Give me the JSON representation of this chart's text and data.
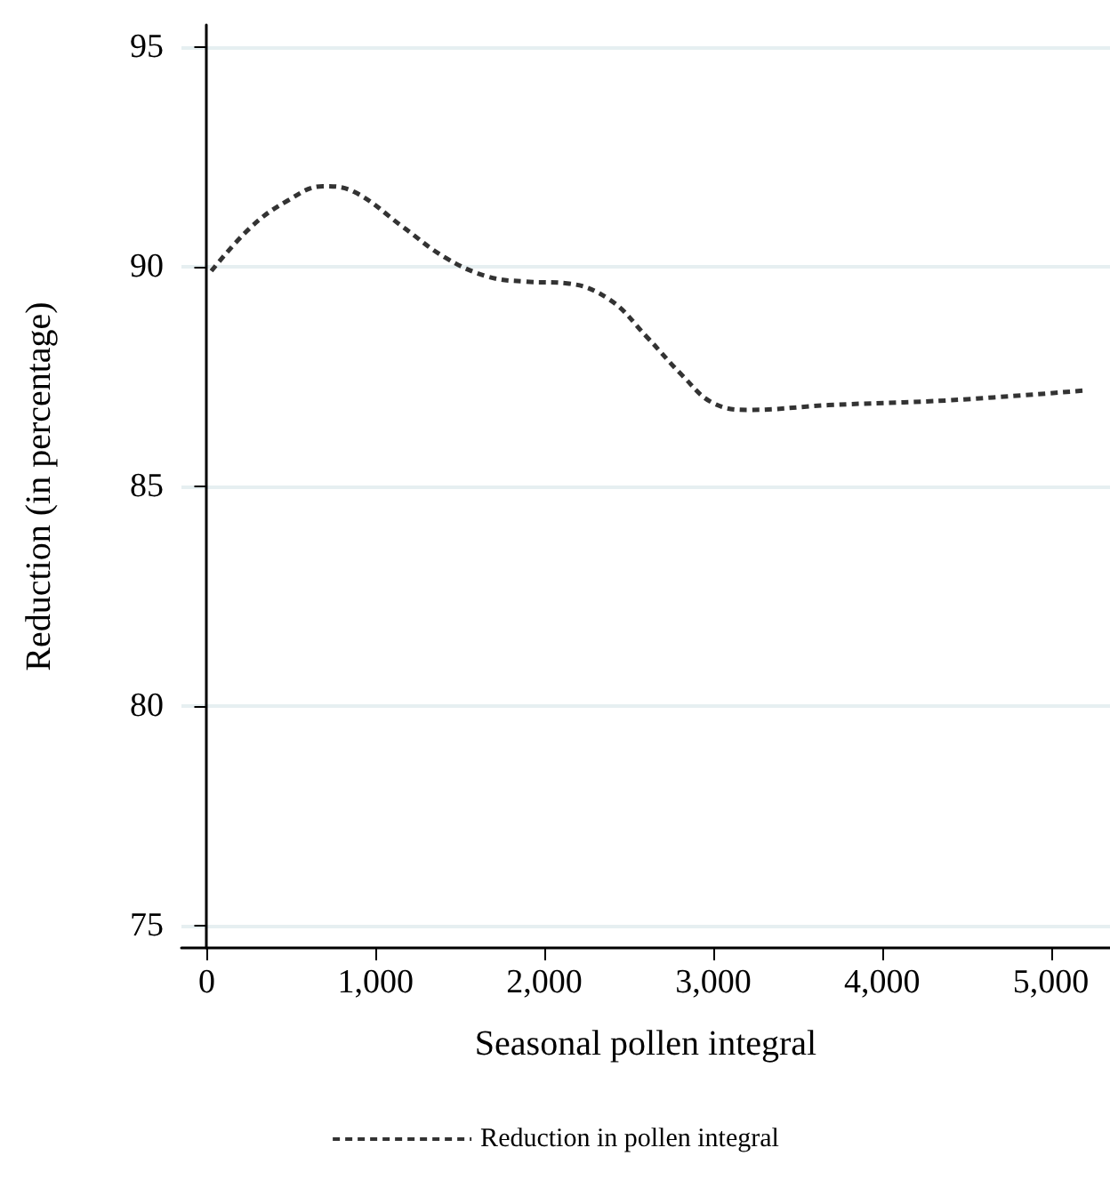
{
  "chart_data": {
    "type": "line",
    "xlabel": "Seasonal pollen integral",
    "ylabel": "Reduction (in percentage)",
    "x": [
      27,
      262,
      478,
      687,
      874,
      1163,
      1415,
      1667,
      1883,
      2135,
      2386,
      2602,
      2818,
      2997,
      3213,
      3682,
      4401,
      5192
    ],
    "series": [
      {
        "name": "Reduction in pollen integral",
        "color": "#333333",
        "values": [
          89.9,
          90.9,
          91.5,
          91.83,
          91.7,
          90.9,
          90.2,
          89.77,
          89.66,
          89.62,
          89.25,
          88.42,
          87.52,
          86.9,
          86.74,
          86.85,
          86.96,
          87.18
        ]
      }
    ],
    "xlim": [
      -150,
      5350
    ],
    "xticks": [
      {
        "value": 0,
        "label": "0"
      },
      {
        "value": 1000,
        "label": "1,000"
      },
      {
        "value": 2000,
        "label": "2,000"
      },
      {
        "value": 3000,
        "label": "3,000"
      },
      {
        "value": 4000,
        "label": "4,000"
      },
      {
        "value": 5000,
        "label": "5,000"
      }
    ],
    "ylim": [
      74.5,
      95.5
    ],
    "yticks": [
      75,
      80,
      85,
      90,
      95
    ],
    "grid": "y",
    "legend": "bottom",
    "marker": "none",
    "line_style": "dashed"
  }
}
